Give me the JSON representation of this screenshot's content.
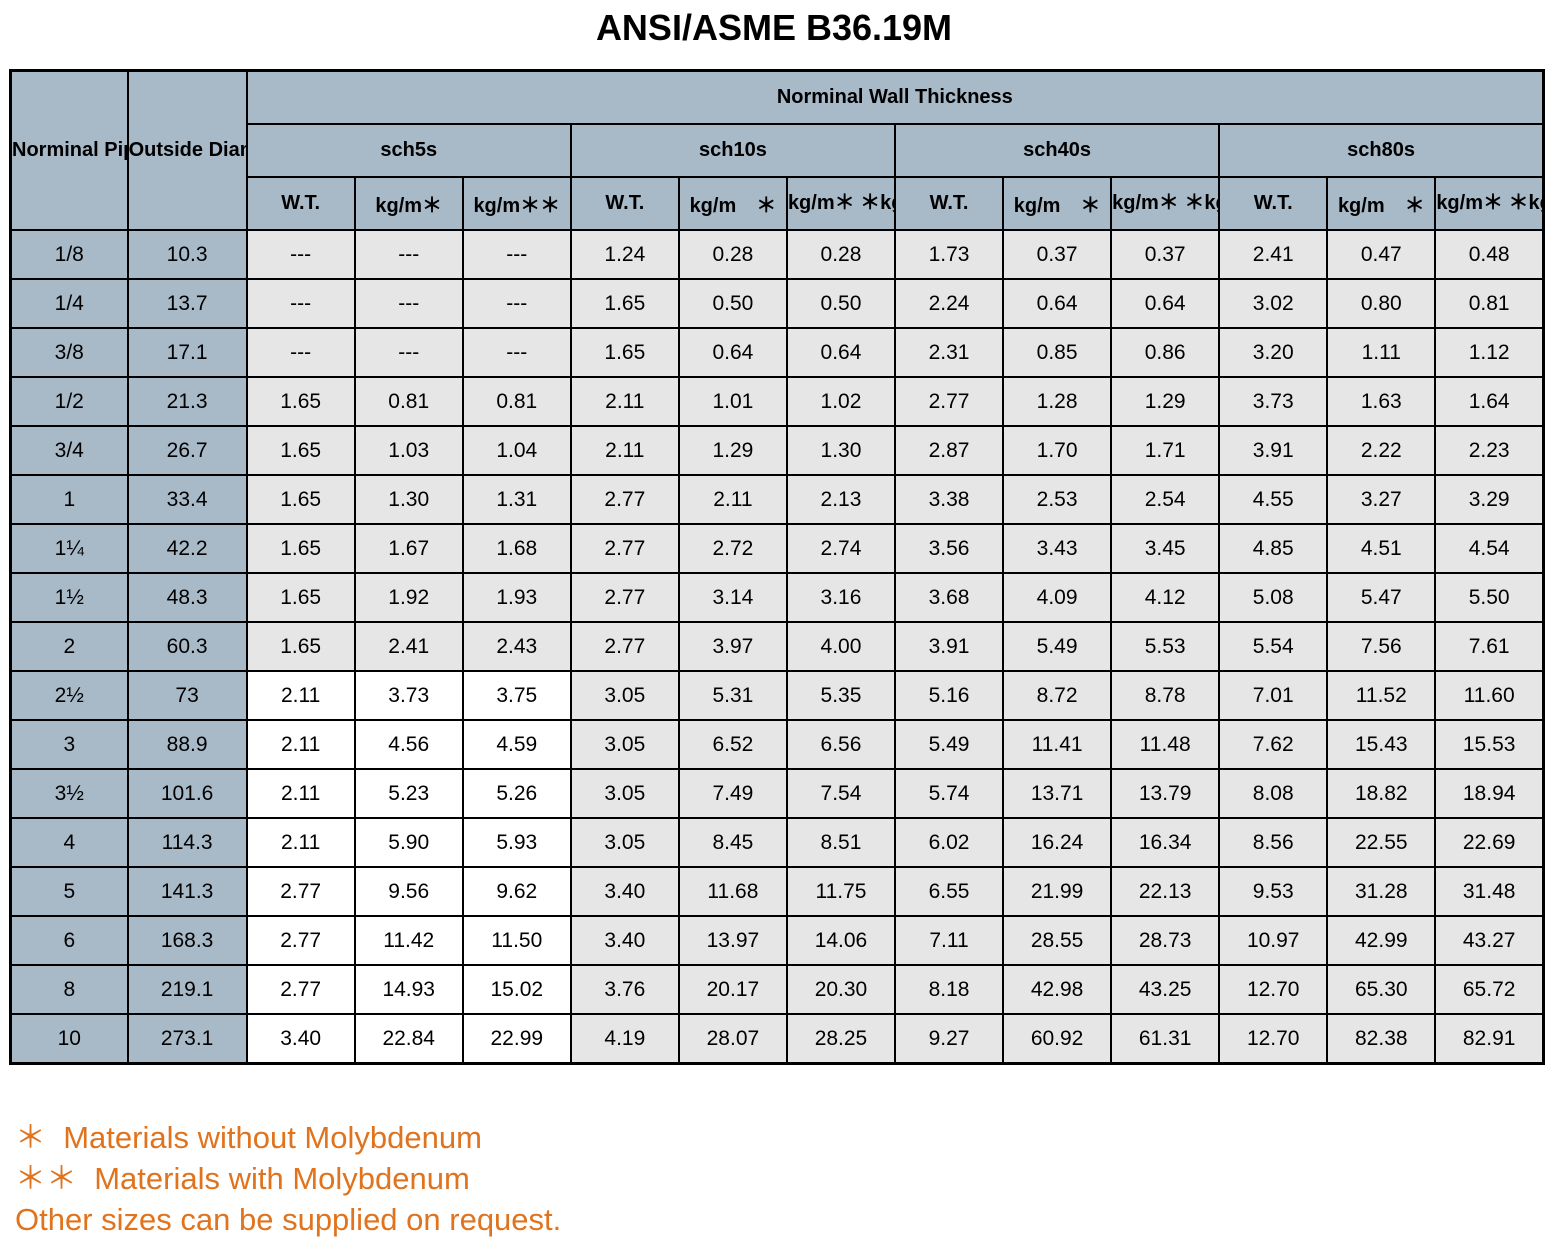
{
  "title": "ANSI/ASME B36.19M",
  "headers": {
    "nps": "Norminal Pipe Size DN(in.)",
    "od": "Outside Diameter D",
    "group": "Norminal Wall Thickness",
    "schedules": [
      "sch5s",
      "sch10s",
      "sch40s",
      "sch80s"
    ],
    "sub": [
      [
        "W.T.",
        "kg/m＊",
        "kg/m＊＊"
      ],
      [
        "W.T.",
        "kg/m　＊",
        "kg/m＊ ＊kg/m ＊＊"
      ],
      [
        "W.T.",
        "kg/m　＊",
        "kg/m＊ ＊kg/m ＊＊"
      ],
      [
        "W.T.",
        "kg/m　＊",
        "kg/m＊ ＊kg/m ＊＊"
      ]
    ]
  },
  "rows": [
    {
      "dn": "1/8",
      "od": "10.3",
      "vals": [
        "---",
        "---",
        "---",
        "1.24",
        "0.28",
        "0.28",
        "1.73",
        "0.37",
        "0.37",
        "2.41",
        "0.47",
        "0.48"
      ]
    },
    {
      "dn": "1/4",
      "od": "13.7",
      "vals": [
        "---",
        "---",
        "---",
        "1.65",
        "0.50",
        "0.50",
        "2.24",
        "0.64",
        "0.64",
        "3.02",
        "0.80",
        "0.81"
      ]
    },
    {
      "dn": "3/8",
      "od": "17.1",
      "vals": [
        "---",
        "---",
        "---",
        "1.65",
        "0.64",
        "0.64",
        "2.31",
        "0.85",
        "0.86",
        "3.20",
        "1.11",
        "1.12"
      ]
    },
    {
      "dn": "1/2",
      "od": "21.3",
      "vals": [
        "1.65",
        "0.81",
        "0.81",
        "2.11",
        "1.01",
        "1.02",
        "2.77",
        "1.28",
        "1.29",
        "3.73",
        "1.63",
        "1.64"
      ]
    },
    {
      "dn": "3/4",
      "od": "26.7",
      "vals": [
        "1.65",
        "1.03",
        "1.04",
        "2.11",
        "1.29",
        "1.30",
        "2.87",
        "1.70",
        "1.71",
        "3.91",
        "2.22",
        "2.23"
      ]
    },
    {
      "dn": "1",
      "od": "33.4",
      "vals": [
        "1.65",
        "1.30",
        "1.31",
        "2.77",
        "2.11",
        "2.13",
        "3.38",
        "2.53",
        "2.54",
        "4.55",
        "3.27",
        "3.29"
      ]
    },
    {
      "dn": "1¼",
      "od": "42.2",
      "vals": [
        "1.65",
        "1.67",
        "1.68",
        "2.77",
        "2.72",
        "2.74",
        "3.56",
        "3.43",
        "3.45",
        "4.85",
        "4.51",
        "4.54"
      ]
    },
    {
      "dn": "1½",
      "od": "48.3",
      "vals": [
        "1.65",
        "1.92",
        "1.93",
        "2.77",
        "3.14",
        "3.16",
        "3.68",
        "4.09",
        "4.12",
        "5.08",
        "5.47",
        "5.50"
      ]
    },
    {
      "dn": "2",
      "od": "60.3",
      "vals": [
        "1.65",
        "2.41",
        "2.43",
        "2.77",
        "3.97",
        "4.00",
        "3.91",
        "5.49",
        "5.53",
        "5.54",
        "7.56",
        "7.61"
      ]
    },
    {
      "dn": "2½",
      "od": "73",
      "vals": [
        "2.11",
        "3.73",
        "3.75",
        "3.05",
        "5.31",
        "5.35",
        "5.16",
        "8.72",
        "8.78",
        "7.01",
        "11.52",
        "11.60"
      ]
    },
    {
      "dn": "3",
      "od": "88.9",
      "vals": [
        "2.11",
        "4.56",
        "4.59",
        "3.05",
        "6.52",
        "6.56",
        "5.49",
        "11.41",
        "11.48",
        "7.62",
        "15.43",
        "15.53"
      ]
    },
    {
      "dn": "3½",
      "od": "101.6",
      "vals": [
        "2.11",
        "5.23",
        "5.26",
        "3.05",
        "7.49",
        "7.54",
        "5.74",
        "13.71",
        "13.79",
        "8.08",
        "18.82",
        "18.94"
      ]
    },
    {
      "dn": "4",
      "od": "114.3",
      "vals": [
        "2.11",
        "5.90",
        "5.93",
        "3.05",
        "8.45",
        "8.51",
        "6.02",
        "16.24",
        "16.34",
        "8.56",
        "22.55",
        "22.69"
      ]
    },
    {
      "dn": "5",
      "od": "141.3",
      "vals": [
        "2.77",
        "9.56",
        "9.62",
        "3.40",
        "11.68",
        "11.75",
        "6.55",
        "21.99",
        "22.13",
        "9.53",
        "31.28",
        "31.48"
      ]
    },
    {
      "dn": "6",
      "od": "168.3",
      "vals": [
        "2.77",
        "11.42",
        "11.50",
        "3.40",
        "13.97",
        "14.06",
        "7.11",
        "28.55",
        "28.73",
        "10.97",
        "42.99",
        "43.27"
      ]
    },
    {
      "dn": "8",
      "od": "219.1",
      "vals": [
        "2.77",
        "14.93",
        "15.02",
        "3.76",
        "20.17",
        "20.30",
        "8.18",
        "42.98",
        "43.25",
        "12.70",
        "65.30",
        "65.72"
      ]
    },
    {
      "dn": "10",
      "od": "273.1",
      "vals": [
        "3.40",
        "22.84",
        "22.99",
        "4.19",
        "28.07",
        "28.25",
        "9.27",
        "60.92",
        "61.31",
        "12.70",
        "82.38",
        "82.91"
      ]
    }
  ],
  "notes": [
    "＊  Materials without Molybdenum",
    "＊＊  Materials with Molybdenum",
    "Other sizes can be supplied on request."
  ],
  "colors": {
    "header_bg": "#a8b9c8",
    "cell_grey": "#e6e6e6",
    "note_text": "#e0731e"
  }
}
